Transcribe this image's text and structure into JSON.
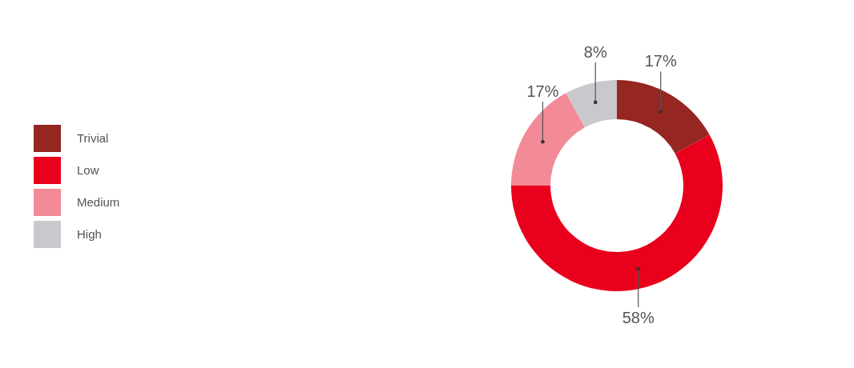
{
  "chart_data": {
    "type": "donut",
    "categories": [
      "Trivial",
      "Low",
      "Medium",
      "High"
    ],
    "values": [
      17,
      58,
      17,
      8
    ],
    "colors": [
      "#962622",
      "#e8001c",
      "#f28a97",
      "#c9c8cc"
    ],
    "value_labels": [
      "17%",
      "58%",
      "17%",
      "8%"
    ],
    "legend": "left"
  }
}
